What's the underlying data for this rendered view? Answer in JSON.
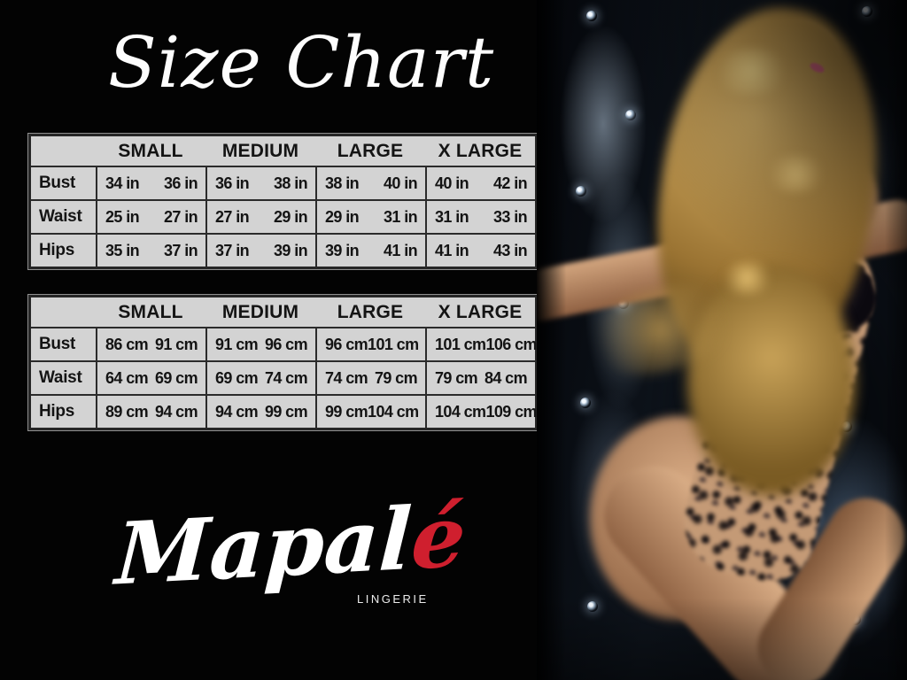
{
  "page": {
    "title": "Size Chart"
  },
  "brand": {
    "name_main": "Mapal",
    "name_accent": "é",
    "tagline": "LINGERIE",
    "accent_color": "#cf1f2e"
  },
  "colors": {
    "background": "#030303",
    "table_background": "#d3d3d3",
    "table_border": "#2b2b2b",
    "table_text": "#141414",
    "title_text": "#fdfdfd",
    "hair_gold": "#c9a45f",
    "skin": "#cfa07c",
    "upholstery_sheen": "#6c8096"
  },
  "size_chart": {
    "tables": [
      {
        "unit": "in",
        "headers": [
          "SMALL",
          "MEDIUM",
          "LARGE",
          "X LARGE"
        ],
        "rows": [
          {
            "label": "Bust",
            "values": [
              "34 in",
              "36 in",
              "36 in",
              "38 in",
              "38 in",
              "40 in",
              "40 in",
              "42 in"
            ]
          },
          {
            "label": "Waist",
            "values": [
              "25 in",
              "27 in",
              "27 in",
              "29 in",
              "29 in",
              "31 in",
              "31 in",
              "33 in"
            ]
          },
          {
            "label": "Hips",
            "values": [
              "35 in",
              "37 in",
              "37 in",
              "39 in",
              "39 in",
              "41 in",
              "41 in",
              "43 in"
            ]
          }
        ]
      },
      {
        "unit": "cm",
        "headers": [
          "SMALL",
          "MEDIUM",
          "LARGE",
          "X LARGE"
        ],
        "rows": [
          {
            "label": "Bust",
            "values": [
              "86 cm",
              "91 cm",
              "91 cm",
              "96 cm",
              "96 cm",
              "101 cm",
              "101 cm",
              "106 cm"
            ]
          },
          {
            "label": "Waist",
            "values": [
              "64 cm",
              "69 cm",
              "69 cm",
              "74 cm",
              "74 cm",
              "79 cm",
              "79 cm",
              "84 cm"
            ]
          },
          {
            "label": "Hips",
            "values": [
              "89 cm",
              "94 cm",
              "94 cm",
              "99 cm",
              "99 cm",
              "104 cm",
              "104 cm",
              "109 cm"
            ]
          }
        ]
      }
    ]
  }
}
